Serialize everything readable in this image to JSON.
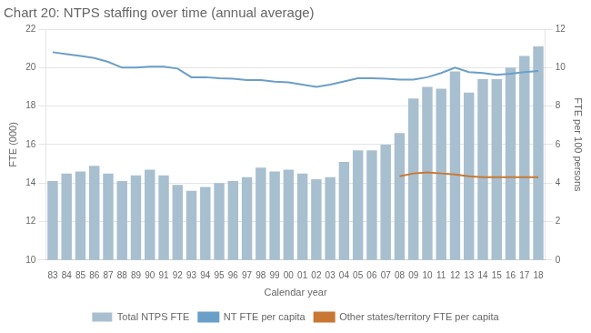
{
  "chart_data": {
    "type": "bar",
    "title": "Chart 20: NTPS staffing over time (annual average)",
    "x_label": "Calendar year",
    "y_label": "FTE (000)",
    "y2_label": "FTE per 100 persons",
    "categories": [
      "83",
      "84",
      "85",
      "86",
      "87",
      "88",
      "89",
      "90",
      "91",
      "92",
      "93",
      "94",
      "95",
      "96",
      "97",
      "98",
      "99",
      "00",
      "01",
      "02",
      "03",
      "04",
      "05",
      "06",
      "07",
      "08",
      "09",
      "10",
      "11",
      "12",
      "13",
      "14",
      "15",
      "16",
      "17",
      "18"
    ],
    "series": [
      {
        "name": "Total NTPS FTE",
        "type": "bar",
        "color": "#a8bfd0",
        "values": [
          14.1,
          14.5,
          14.6,
          14.9,
          14.5,
          14.1,
          14.4,
          14.7,
          14.4,
          13.9,
          13.6,
          13.8,
          14.0,
          14.1,
          14.3,
          14.8,
          14.6,
          14.7,
          14.5,
          14.2,
          14.3,
          15.1,
          15.7,
          15.7,
          16.0,
          16.6,
          18.4,
          19.0,
          18.9,
          19.8,
          18.7,
          19.4,
          19.4,
          20.0,
          20.6,
          21.1
        ]
      },
      {
        "name": "NT FTE per capita",
        "type": "line",
        "axis": "y2",
        "color": "#6b9fc7",
        "values": [
          10.8,
          10.7,
          10.6,
          10.5,
          10.3,
          10.0,
          10.0,
          10.05,
          10.05,
          9.95,
          9.5,
          9.5,
          9.45,
          9.42,
          9.35,
          9.35,
          9.27,
          9.23,
          9.12,
          9.0,
          9.12,
          9.28,
          9.45,
          9.45,
          9.42,
          9.38,
          9.38,
          9.5,
          9.72,
          10.0,
          9.77,
          9.72,
          9.62,
          9.68,
          9.77,
          9.82
        ]
      },
      {
        "name": "Other states/territory FTE per capita",
        "type": "line",
        "axis": "y2",
        "color": "#c87833",
        "values": [
          null,
          null,
          null,
          null,
          null,
          null,
          null,
          null,
          null,
          null,
          null,
          null,
          null,
          null,
          null,
          null,
          null,
          null,
          null,
          null,
          null,
          null,
          null,
          null,
          null,
          4.35,
          4.5,
          4.55,
          4.5,
          4.45,
          4.35,
          4.3,
          4.3,
          4.3,
          4.3,
          4.3
        ]
      }
    ],
    "ylim": [
      10,
      22
    ],
    "yticks": [
      10,
      12,
      14,
      16,
      18,
      20,
      22
    ],
    "y2lim": [
      0,
      12
    ],
    "y2ticks": [
      0,
      2,
      4,
      6,
      8,
      10,
      12
    ],
    "grid": true,
    "legend": "bottom"
  }
}
